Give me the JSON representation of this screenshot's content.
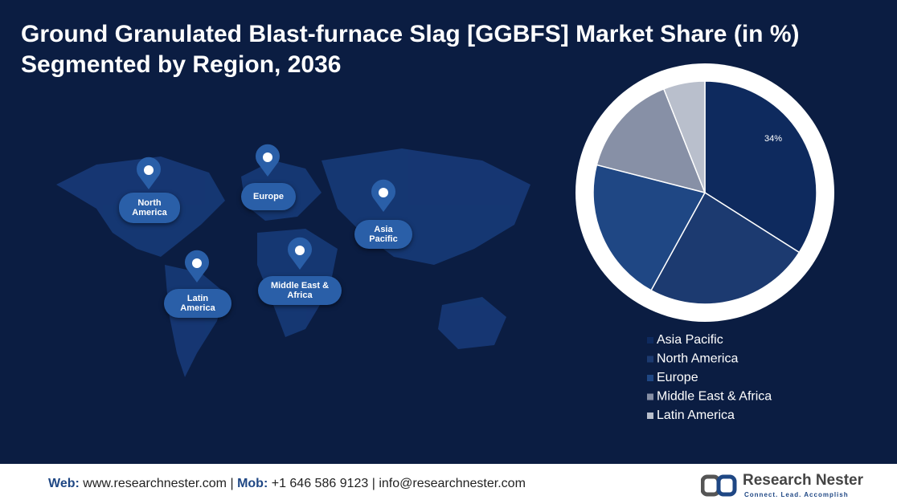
{
  "chart_data": {
    "type": "pie",
    "title": "Ground Granulated Blast-furnace Slag [GGBFS] Market Share (in %) Segmented by Region, 2036",
    "categories": [
      "Asia Pacific",
      "North America",
      "Europe",
      "Middle East & Africa",
      "Latin America"
    ],
    "values": [
      34,
      24,
      21,
      15,
      6
    ],
    "value_labels": [
      "34%",
      null,
      null,
      null,
      null
    ],
    "colors": [
      "#0e2a5e",
      "#1c3a70",
      "#1f4784",
      "#8790a6",
      "#b9bfcc"
    ]
  },
  "map_labels": [
    "North America",
    "Europe",
    "Asia Pacific",
    "Latin America",
    "Middle East & Africa"
  ],
  "footer": {
    "web_label": "Web:",
    "web": "www.researchnester.com",
    "separator": "|",
    "mob_label": "Mob:",
    "mob": "+1 646 586 9123",
    "email": "info@researchnester.com"
  },
  "logo": {
    "name": "Research Nester",
    "tagline": "Connect. Lead. Accomplish"
  }
}
